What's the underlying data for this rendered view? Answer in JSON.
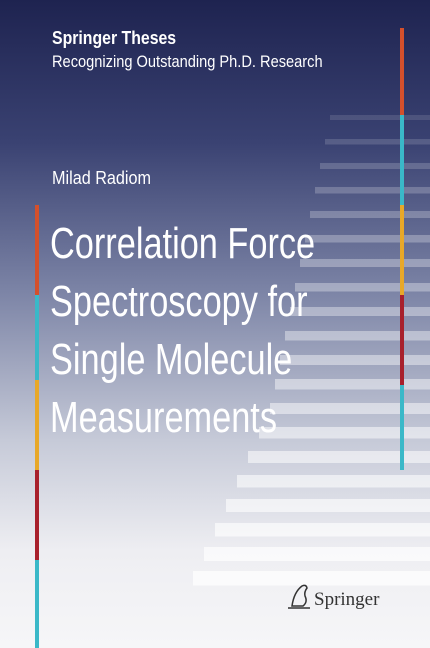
{
  "series": {
    "name": "Springer Theses",
    "tagline": "Recognizing Outstanding Ph.D. Research"
  },
  "author": "Milad Radiom",
  "title_lines": [
    "Correlation Force",
    "Spectroscopy for",
    "Single Molecule",
    "Measurements"
  ],
  "publisher": "Springer"
}
